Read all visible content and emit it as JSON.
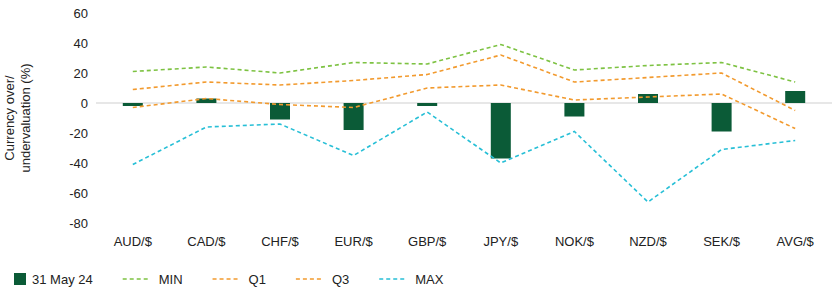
{
  "chart_data": {
    "type": "bar",
    "y_label": "Currency over/\nundervaluation (%)",
    "categories": [
      "AUD/$",
      "CAD/$",
      "CHF/$",
      "EUR/$",
      "GBP/$",
      "JPY/$",
      "NOK/$",
      "NZD/$",
      "SEK/$",
      "AVG/$"
    ],
    "series": [
      {
        "name": "31 May 24",
        "type": "bar",
        "color": "#0b5b37",
        "values": [
          -2,
          3,
          -11,
          -18,
          -2,
          -37,
          -9,
          6,
          -19,
          8
        ]
      },
      {
        "name": "MIN",
        "type": "line",
        "line_style": "dashed",
        "color": "#7dc242",
        "values": [
          21,
          24,
          20,
          27,
          26,
          39,
          22,
          25,
          27,
          14
        ]
      },
      {
        "name": "Q1",
        "type": "line",
        "line_style": "dashed",
        "color": "#f29a2e",
        "values": [
          -3,
          3,
          -1,
          -3,
          10,
          12,
          2,
          4,
          6,
          -17
        ]
      },
      {
        "name": "Q3",
        "type": "line",
        "line_style": "dashed",
        "color": "#f29a2e",
        "values": [
          9,
          14,
          12,
          15,
          19,
          32,
          14,
          17,
          20,
          -5
        ]
      },
      {
        "name": "MAX",
        "type": "line",
        "line_style": "dashed",
        "color": "#27bfd6",
        "values": [
          -41,
          -16,
          -14,
          -35,
          -6,
          -40,
          -19,
          -66,
          -31,
          -25
        ]
      }
    ],
    "ylim": [
      -80,
      60
    ],
    "yticks": [
      -80,
      -60,
      -40,
      -20,
      0,
      20,
      40,
      60
    ],
    "grid": false,
    "legend": "bottom"
  }
}
